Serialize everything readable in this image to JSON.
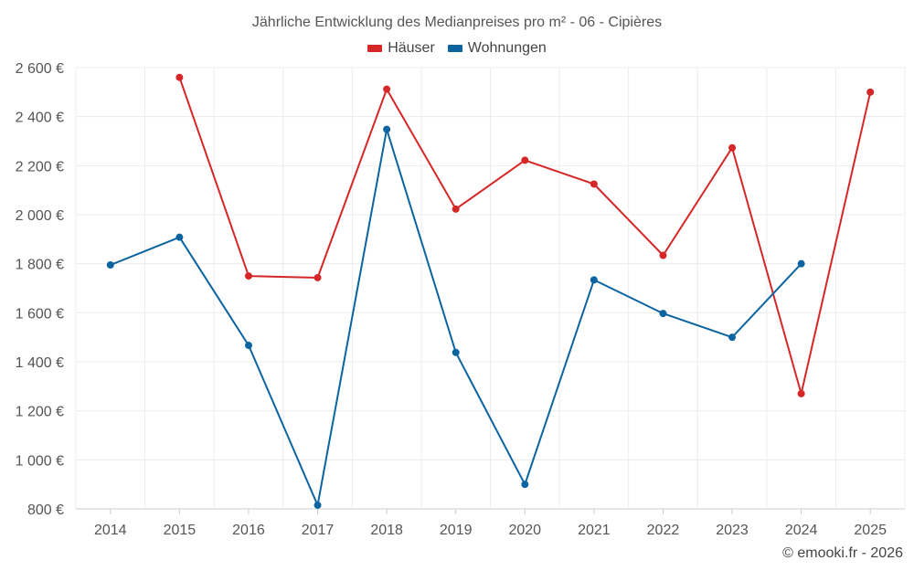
{
  "chart_data": {
    "type": "line",
    "title": "Jährliche Entwicklung des Medianpreises pro m² - 06 - Cipières",
    "categories": [
      "2014",
      "2015",
      "2016",
      "2017",
      "2018",
      "2019",
      "2020",
      "2021",
      "2022",
      "2023",
      "2024",
      "2025"
    ],
    "ylim": [
      800,
      2600
    ],
    "yticks": [
      800,
      1000,
      1200,
      1400,
      1600,
      1800,
      2000,
      2200,
      2400,
      2600
    ],
    "ytick_labels": [
      "800 €",
      "1 000 €",
      "1 200 €",
      "1 400 €",
      "1 600 €",
      "1 800 €",
      "2 000 €",
      "2 200 €",
      "2 400 €",
      "2 600 €"
    ],
    "grid": true,
    "legend_position": "top-center",
    "series": [
      {
        "name": "Häuser",
        "color": "#d62728",
        "values": [
          null,
          2560,
          1750,
          1743,
          2512,
          2023,
          2222,
          2125,
          1834,
          2273,
          1270,
          2500
        ]
      },
      {
        "name": "Wohnungen",
        "color": "#0b64a0",
        "values": [
          1795,
          1908,
          1467,
          815,
          2348,
          1438,
          900,
          1734,
          1597,
          1500,
          1800,
          null
        ]
      }
    ]
  },
  "footer": {
    "credit": "© emooki.fr - 2026"
  }
}
